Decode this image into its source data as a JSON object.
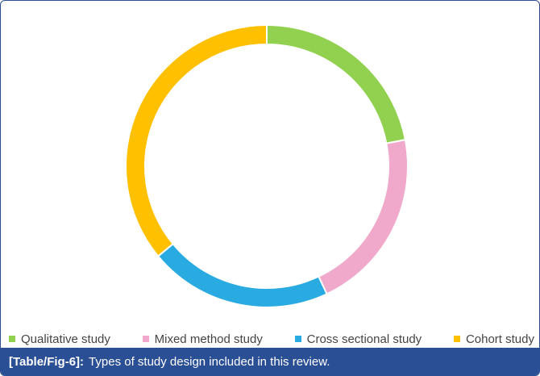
{
  "chart_data": {
    "type": "pie",
    "donut": true,
    "categories": [
      "Qualitative study",
      "Mixed method study",
      "Cross sectional study",
      "Cohort study"
    ],
    "values": [
      22,
      21,
      21,
      36
    ],
    "colors": [
      "#92d050",
      "#f0a8cb",
      "#29abe2",
      "#ffc000"
    ],
    "legend_position": "bottom"
  },
  "caption": {
    "label": "[Table/Fig-6]:",
    "text": "Types of study design included in this review."
  }
}
